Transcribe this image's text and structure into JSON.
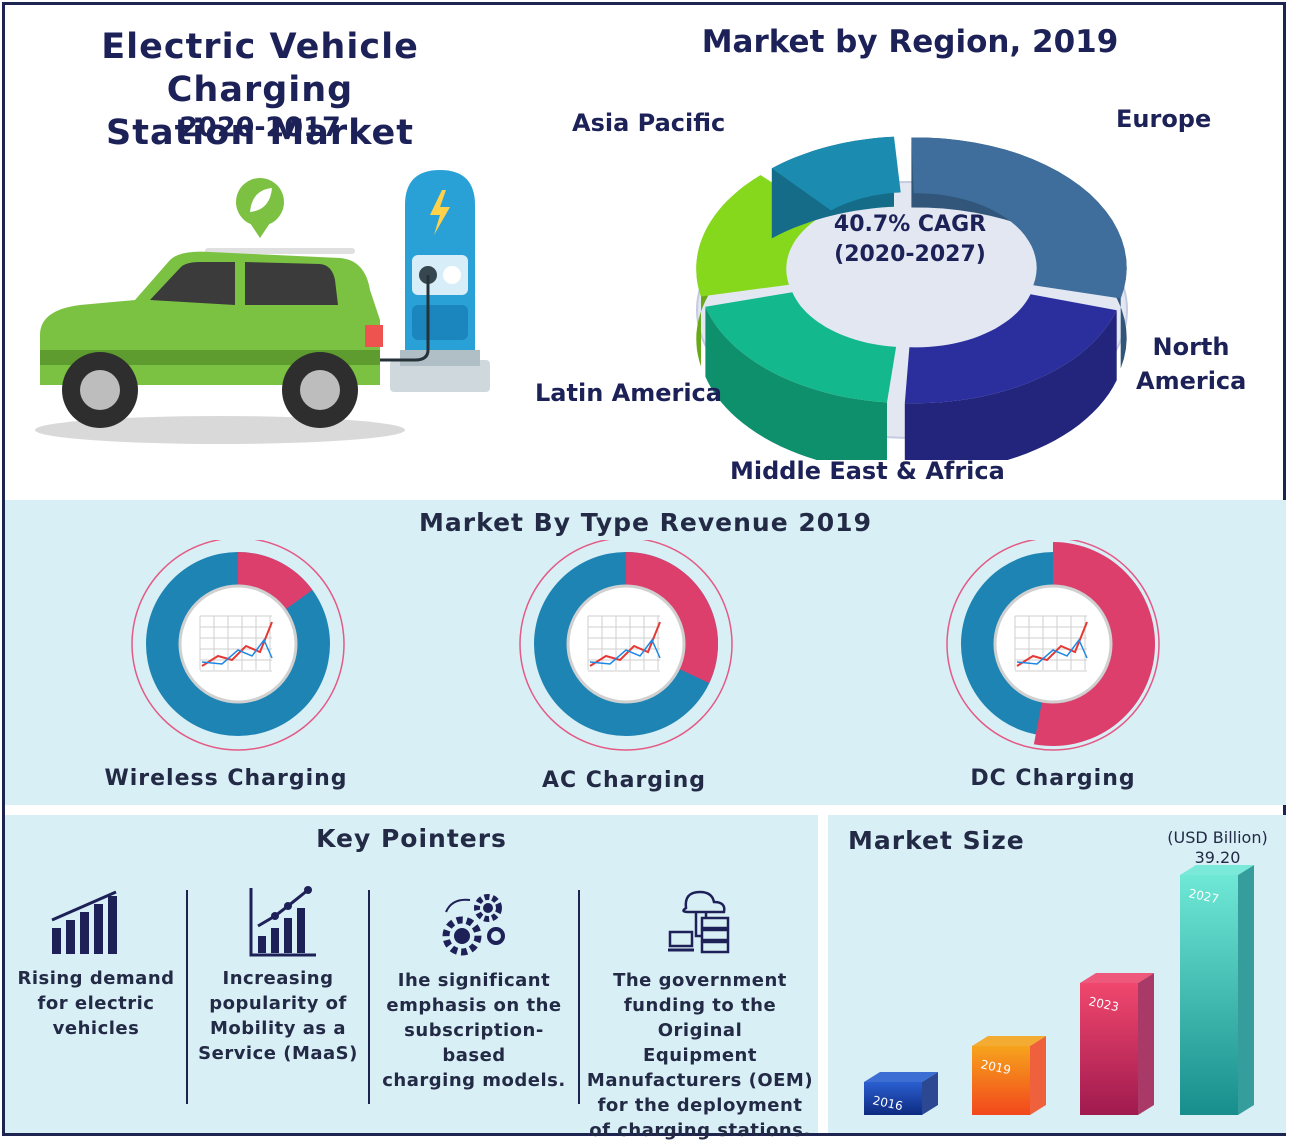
{
  "header": {
    "title_line1": "Electric Vehicle Charging",
    "title_line2": "Station Market",
    "years": "2020-2017"
  },
  "region_chart": {
    "title": "Market by Region, 2019",
    "center_line1": "40.7% CAGR",
    "center_line2": "(2020-2027)",
    "labels": {
      "asia_pacific": "Asia Pacific",
      "europe": "Europe",
      "north_america_1": "North",
      "north_america_2": "America",
      "latin_america": "Latin America",
      "mea": "Middle East & Africa"
    }
  },
  "type_section": {
    "title": "Market By Type Revenue 2019"
  },
  "key_pointers": {
    "title": "Key Pointers",
    "items": [
      {
        "icon": "bar-chart-icon",
        "line1": "Rising demand",
        "line2": "for electric",
        "line3": "vehicles",
        "line4": ""
      },
      {
        "icon": "growth-chart-icon",
        "line1": "Increasing",
        "line2": "popularity of",
        "line3": "Mobility as a",
        "line4": "Service (MaaS)"
      },
      {
        "icon": "gears-icon",
        "line1": "Ihe significant",
        "line2": "emphasis on the",
        "line3": "subscription-based",
        "line4": "charging models."
      },
      {
        "icon": "cloud-server-icon",
        "line1": "The government",
        "line2": "funding to the Original",
        "line3": "Equipment",
        "line4": "Manufacturers (OEM)",
        "line5": "for the deployment",
        "line6": "of charging stations."
      }
    ]
  },
  "market_size": {
    "title": "Market Size",
    "unit": "(USD Billion)",
    "top_value": "39.20"
  },
  "chart_data": [
    {
      "type": "pie",
      "title": "Market by Region, 2019",
      "categories": [
        "Asia Pacific",
        "Europe",
        "North America",
        "Middle East & Africa",
        "Latin America"
      ],
      "values": [
        30,
        22,
        20,
        17,
        11
      ],
      "colors": [
        "#3f6e9c",
        "#2b2f9e",
        "#13b98c",
        "#86d81c",
        "#1b8bb0"
      ]
    },
    {
      "type": "pie",
      "title": "Market By Type Revenue 2019",
      "charts": [
        {
          "name": "Wireless Charging",
          "highlight_share": 0.15,
          "highlight_color": "#dc3f6c",
          "base_color": "#1d84b4"
        },
        {
          "name": "AC Charging",
          "highlight_share": 0.32,
          "highlight_color": "#dc3f6c",
          "base_color": "#1d84b4"
        },
        {
          "name": "DC Charging",
          "highlight_share": 0.53,
          "highlight_color": "#dc3f6c",
          "base_color": "#1d84b4"
        }
      ]
    },
    {
      "type": "bar",
      "title": "Market Size",
      "ylabel": "(USD Billion)",
      "categories": [
        "2016",
        "2019",
        "2023",
        "2027"
      ],
      "values": [
        5.5,
        11.5,
        22.0,
        39.2
      ],
      "labeled_value": "39.20",
      "colors": [
        [
          "#2a5fd0",
          "#0d2a80"
        ],
        [
          "#f6a31c",
          "#f2471c"
        ],
        [
          "#f0476d",
          "#a01a4f"
        ],
        [
          "#6fe8d6",
          "#178e8c"
        ]
      ]
    }
  ]
}
